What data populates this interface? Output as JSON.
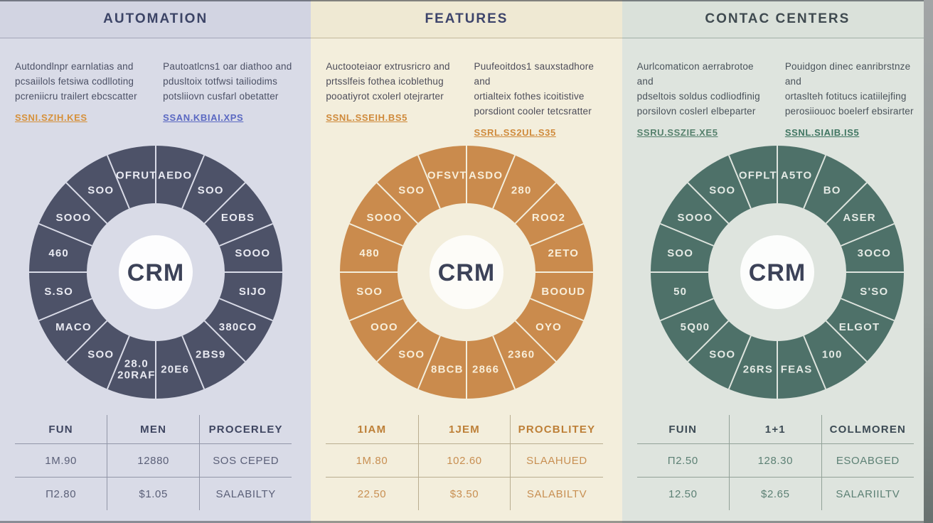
{
  "chart_data": [
    {
      "type": "pie",
      "title": "AUTOMATION",
      "center_label": "CRM",
      "legend_position": "none",
      "equal_segments": true,
      "labels": [
        "AEDO",
        "SOO",
        "EOBS",
        "SOOO",
        "SIJO",
        "380CO",
        "2BS9",
        "20E6",
        "28.0\n20RAF",
        "SOO",
        "MACO",
        "S.SO",
        "460",
        "SOOO",
        "SOO",
        "OFRUT"
      ],
      "values": [
        1,
        1,
        1,
        1,
        1,
        1,
        1,
        1,
        1,
        1,
        1,
        1,
        1,
        1,
        1,
        1
      ]
    },
    {
      "type": "pie",
      "title": "FEATURES",
      "center_label": "CRM",
      "legend_position": "none",
      "equal_segments": true,
      "labels": [
        "ASDO",
        "280",
        "ROO2",
        "2ETO",
        "BOOUD",
        "OYO",
        "2360",
        "2866",
        "8BCB",
        "SOO",
        "OOO",
        "SOO",
        "480",
        "SOOO",
        "SOO",
        "OFSVT"
      ],
      "values": [
        1,
        1,
        1,
        1,
        1,
        1,
        1,
        1,
        1,
        1,
        1,
        1,
        1,
        1,
        1,
        1
      ]
    },
    {
      "type": "pie",
      "title": "CONTAC CENTERS",
      "center_label": "CRM",
      "legend_position": "none",
      "equal_segments": true,
      "labels": [
        "A5TO",
        "BO",
        "ASER",
        "3OCO",
        "S'SO",
        "ELGOT",
        "100",
        "FEAS",
        "26RS",
        "SOO",
        "5Q00",
        "50",
        "SOO",
        "SOOO",
        "SOO",
        "OFPLT"
      ],
      "values": [
        1,
        1,
        1,
        1,
        1,
        1,
        1,
        1,
        1,
        1,
        1,
        1,
        1,
        1,
        1,
        1
      ]
    }
  ],
  "columns": [
    {
      "title": "AUTOMATION",
      "blurbs": [
        {
          "text": "Autdondlnpr earnlatias and\npcsaiilols fetsiwa codlloting\npcreniicru trailert ebcscatter",
          "link": "SSNI.SZIH.KES",
          "link_color": "#d6913b"
        },
        {
          "text": "Pautoatlcns1 oar diathoo and\npdusltoix totfwsi tailiodims\npotsliiovn cusfarl obetatter",
          "link": "SSAN.KBIAI.XPS",
          "link_color": "#5a68c2"
        }
      ],
      "donut_center": "CRM",
      "table": {
        "headers": [
          "FUN",
          "MEN",
          "PROCERLEY"
        ],
        "rows": [
          [
            "1M.90",
            "12880",
            "SOS CEPED"
          ],
          [
            "Π2.80",
            "$1.05",
            "SALABILTY"
          ]
        ]
      },
      "colors": {
        "bg": "#d9dbe7",
        "header_bg": "#d2d4e2",
        "header_line": "#a3a6b8",
        "title": "#3c4466",
        "text": "#4b5065",
        "ring": "#4d5268",
        "divider": "#d9dbe7",
        "seg_label": "#e9eaf2",
        "center_bg": "#fdfdfe",
        "center_text": "#3c4258",
        "table_header": "#3e4560",
        "table_text": "#5b6078",
        "rule": "#9296a8"
      }
    },
    {
      "title": "FEATURES",
      "blurbs": [
        {
          "text": "Auctooteiaor extrusricro and\nprtsslfeis fothea icoblethug\npooatiyrot cxolerl otejrarter",
          "link": "SSNL.SSEIH.BS5",
          "link_color": "#cf8a3b"
        },
        {
          "text": "Puufeoitdos1 sauxstadhore and\nortialteix fothes icoitistive\nporsdiont cooler tetcsratter",
          "link": "SSRL.SS2UL.S35",
          "link_color": "#cf8a3b"
        }
      ],
      "donut_center": "CRM",
      "table": {
        "headers": [
          "1IAM",
          "1JEM",
          "PROCBLITEY"
        ],
        "rows": [
          [
            "1M.80",
            "102.60",
            "SLAAHUED"
          ],
          [
            "22.50",
            "$3.50",
            "SALABILTV"
          ]
        ]
      },
      "colors": {
        "bg": "#f3eedc",
        "header_bg": "#efe9d3",
        "header_line": "#c2b99c",
        "title": "#3d446b",
        "text": "#4c4c59",
        "ring": "#ca8b4d",
        "divider": "#f3eedc",
        "seg_label": "#f8eed9",
        "center_bg": "#fdfcf8",
        "center_text": "#3c4258",
        "table_header": "#bd7f37",
        "table_text": "#c88f52",
        "rule": "#b9ad90"
      }
    },
    {
      "title": "CONTAC CENTERS",
      "blurbs": [
        {
          "text": "Aurlcomaticon aerrabrotoe and\npdseltois soldus codliodfinig\nporsilovn coslerl elbeparter",
          "link": "SSRU.SSZIE.XE5",
          "link_color": "#55806c"
        },
        {
          "text": "Pouidgon dinec eanribrstnze and\nortaslteh fotitucs icatiilejfing\nperosiiouoc boelerf ebsirarter",
          "link": "SSNL.SIAIB.IS5",
          "link_color": "#3f7561"
        }
      ],
      "donut_center": "CRM",
      "table": {
        "headers": [
          "FUIN",
          "1+1",
          "COLLMOREN"
        ],
        "rows": [
          [
            "Π2.50",
            "128.30",
            "ESOABGED"
          ],
          [
            "12.50",
            "$2.65",
            "SALARIILTV"
          ]
        ]
      },
      "colors": {
        "bg": "#dee4de",
        "header_bg": "#dae1da",
        "header_line": "#a2b0a6",
        "title": "#3f4a50",
        "text": "#49525a",
        "ring": "#4e7169",
        "divider": "#dee4de",
        "seg_label": "#e4eae5",
        "center_bg": "#fcfdfc",
        "center_text": "#3c4258",
        "table_header": "#3c4a54",
        "table_text": "#5c8074",
        "rule": "#92a198"
      }
    }
  ]
}
